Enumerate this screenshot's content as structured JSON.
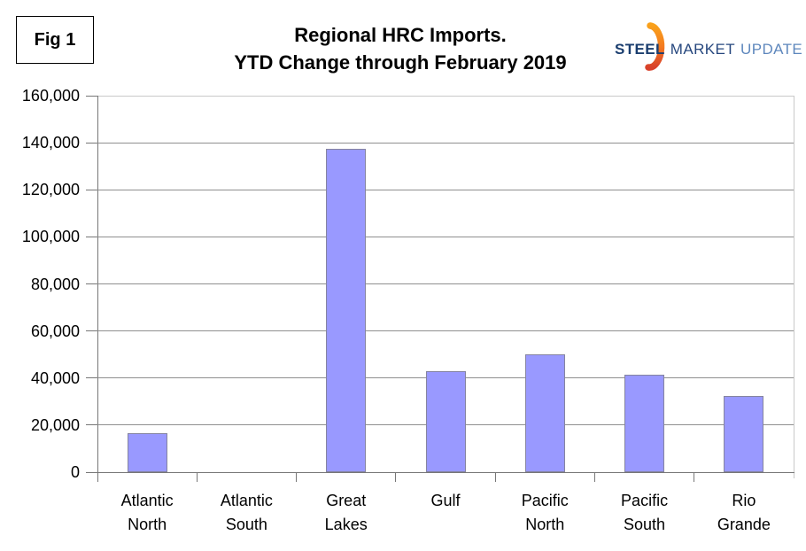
{
  "figure": {
    "label": "Fig 1"
  },
  "title": {
    "line1": "Regional HRC Imports.",
    "line2": "YTD Change through February 2019"
  },
  "logo": {
    "word1": "STEEL",
    "word2": "MARKET",
    "word3": "UPDATE",
    "colors": {
      "word1": "#1b3e6f",
      "word2": "#26477e",
      "word3": "#5e87bd",
      "swoosh_top": "#f9a11b",
      "swoosh_mid": "#f47b20",
      "swoosh_bottom": "#d8402a"
    }
  },
  "chart_data": {
    "type": "bar",
    "title": "Regional HRC Imports. YTD Change through February 2019",
    "categories": [
      "Atlantic North",
      "Atlantic South",
      "Great Lakes",
      "Gulf",
      "Pacific North",
      "Pacific South",
      "Rio Grande"
    ],
    "category_lines": [
      [
        "Atlantic",
        "North"
      ],
      [
        "Atlantic",
        "South"
      ],
      [
        "Great",
        "Lakes"
      ],
      [
        "Gulf"
      ],
      [
        "Pacific",
        "North"
      ],
      [
        "Pacific",
        "South"
      ],
      [
        "Rio",
        "Grande"
      ]
    ],
    "values": [
      16500,
      0,
      137500,
      43000,
      50000,
      41500,
      32500
    ],
    "xlabel": "",
    "ylabel": "",
    "ylim": [
      0,
      160000
    ],
    "ytick_step": 20000,
    "ytick_labels": [
      "0",
      "20,000",
      "40,000",
      "60,000",
      "80,000",
      "100,000",
      "120,000",
      "140,000",
      "160,000"
    ],
    "grid": true,
    "legend": "none",
    "bar_fill": "#9999ff",
    "bar_border": "#8584a0",
    "gridline_color": "#8f8f8f",
    "axis_color": "#777777",
    "plot_border_color": "#c9c9c9"
  }
}
